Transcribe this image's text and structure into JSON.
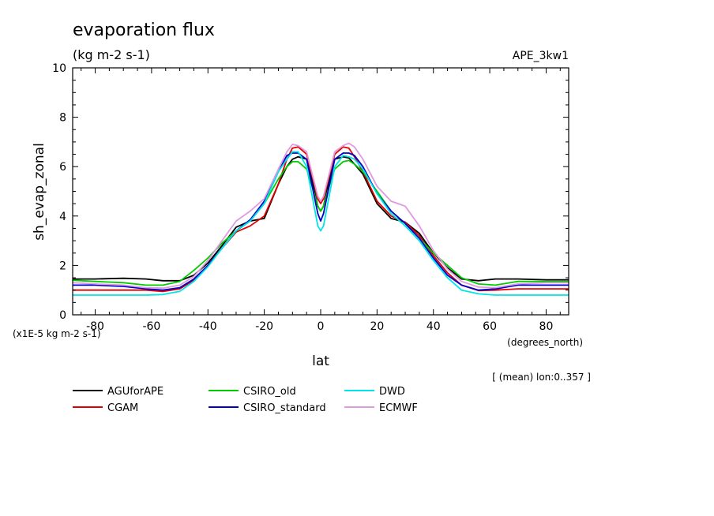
{
  "chart_data": {
    "type": "line",
    "title": "evaporation flux",
    "subtitle": "(kg m-2 s-1)",
    "run_label": "APE_3kw1",
    "ylabel": "sh_evap_zonal",
    "xlabel": "lat",
    "x_unit": "(degrees_north)",
    "y_scale_note": "(x1E-5 kg m-2 s-1)",
    "footnote": "[ (mean) lon:0..357 ]",
    "xlim": [
      -88,
      88
    ],
    "ylim": [
      0,
      10
    ],
    "xticks": [
      -80,
      -60,
      -40,
      -20,
      0,
      20,
      40,
      60,
      80
    ],
    "xtick_labels": [
      "-80",
      "-60",
      "-40",
      "-20",
      "0",
      "20",
      "40",
      "60",
      "80"
    ],
    "yticks": [
      0,
      2,
      4,
      6,
      8,
      10
    ],
    "ytick_labels": [
      "0",
      "2",
      "4",
      "6",
      "8",
      "10"
    ],
    "x": [
      -88,
      -80,
      -70,
      -62,
      -56,
      -50,
      -45,
      -40,
      -35,
      -30,
      -25,
      -20,
      -15,
      -12,
      -10,
      -8,
      -5,
      -3,
      -1,
      0,
      1,
      3,
      5,
      8,
      10,
      12,
      15,
      20,
      25,
      30,
      35,
      40,
      45,
      50,
      56,
      62,
      70,
      80,
      88
    ],
    "series": [
      {
        "name": "AGUforAPE",
        "color": "#000000",
        "values": [
          1.45,
          1.45,
          1.48,
          1.45,
          1.38,
          1.38,
          1.6,
          2.1,
          2.8,
          3.55,
          3.8,
          3.9,
          5.3,
          6.0,
          6.3,
          6.4,
          6.3,
          5.4,
          4.4,
          4.2,
          4.4,
          5.4,
          6.3,
          6.4,
          6.35,
          6.1,
          5.7,
          4.5,
          3.9,
          3.75,
          3.3,
          2.5,
          1.9,
          1.45,
          1.38,
          1.45,
          1.45,
          1.42,
          1.42
        ]
      },
      {
        "name": "CGAM",
        "color": "#e00000",
        "values": [
          1.0,
          1.0,
          1.0,
          1.0,
          0.95,
          1.05,
          1.4,
          2.0,
          2.7,
          3.35,
          3.6,
          4.0,
          5.3,
          6.3,
          6.75,
          6.8,
          6.5,
          5.6,
          4.7,
          4.5,
          4.7,
          5.6,
          6.5,
          6.8,
          6.75,
          6.4,
          5.8,
          4.6,
          4.0,
          3.75,
          3.2,
          2.4,
          1.7,
          1.2,
          0.98,
          1.0,
          1.05,
          1.05,
          1.05
        ]
      },
      {
        "name": "CSIRO_old",
        "color": "#00cc00",
        "values": [
          1.4,
          1.35,
          1.3,
          1.2,
          1.2,
          1.35,
          1.8,
          2.3,
          2.9,
          3.4,
          3.8,
          4.5,
          5.5,
          6.0,
          6.2,
          6.2,
          5.9,
          5.2,
          4.4,
          4.2,
          4.4,
          5.2,
          5.9,
          6.2,
          6.25,
          6.1,
          5.8,
          5.0,
          4.2,
          3.7,
          3.1,
          2.5,
          2.0,
          1.5,
          1.25,
          1.2,
          1.35,
          1.35,
          1.35
        ]
      },
      {
        "name": "CSIRO_standard",
        "color": "#0000cc",
        "values": [
          1.2,
          1.2,
          1.15,
          1.05,
          1.0,
          1.1,
          1.45,
          2.0,
          2.7,
          3.4,
          3.85,
          4.6,
          5.8,
          6.45,
          6.55,
          6.55,
          6.3,
          5.2,
          4.1,
          3.8,
          4.1,
          5.2,
          6.3,
          6.55,
          6.55,
          6.45,
          6.0,
          4.9,
          4.2,
          3.7,
          3.1,
          2.3,
          1.6,
          1.2,
          1.0,
          1.05,
          1.2,
          1.2,
          1.2
        ]
      },
      {
        "name": "DWD",
        "color": "#00e5e5",
        "values": [
          0.8,
          0.8,
          0.8,
          0.8,
          0.82,
          0.95,
          1.35,
          1.95,
          2.7,
          3.4,
          3.8,
          4.5,
          5.8,
          6.3,
          6.6,
          6.6,
          6.0,
          4.8,
          3.6,
          3.4,
          3.6,
          4.8,
          6.0,
          6.45,
          6.4,
          6.3,
          5.9,
          4.9,
          4.1,
          3.6,
          3.0,
          2.2,
          1.5,
          1.0,
          0.85,
          0.8,
          0.8,
          0.8,
          0.8
        ]
      },
      {
        "name": "ECMWF",
        "color": "#e09ae0",
        "values": [
          1.3,
          1.25,
          1.2,
          1.1,
          1.08,
          1.2,
          1.55,
          2.2,
          3.0,
          3.8,
          4.2,
          4.7,
          5.9,
          6.6,
          6.9,
          6.85,
          6.6,
          5.7,
          4.8,
          4.6,
          4.8,
          5.7,
          6.6,
          6.85,
          6.95,
          6.8,
          6.3,
          5.2,
          4.6,
          4.4,
          3.6,
          2.6,
          1.85,
          1.35,
          1.12,
          1.1,
          1.25,
          1.3,
          1.3
        ]
      }
    ],
    "legend_placement": "bottom"
  }
}
